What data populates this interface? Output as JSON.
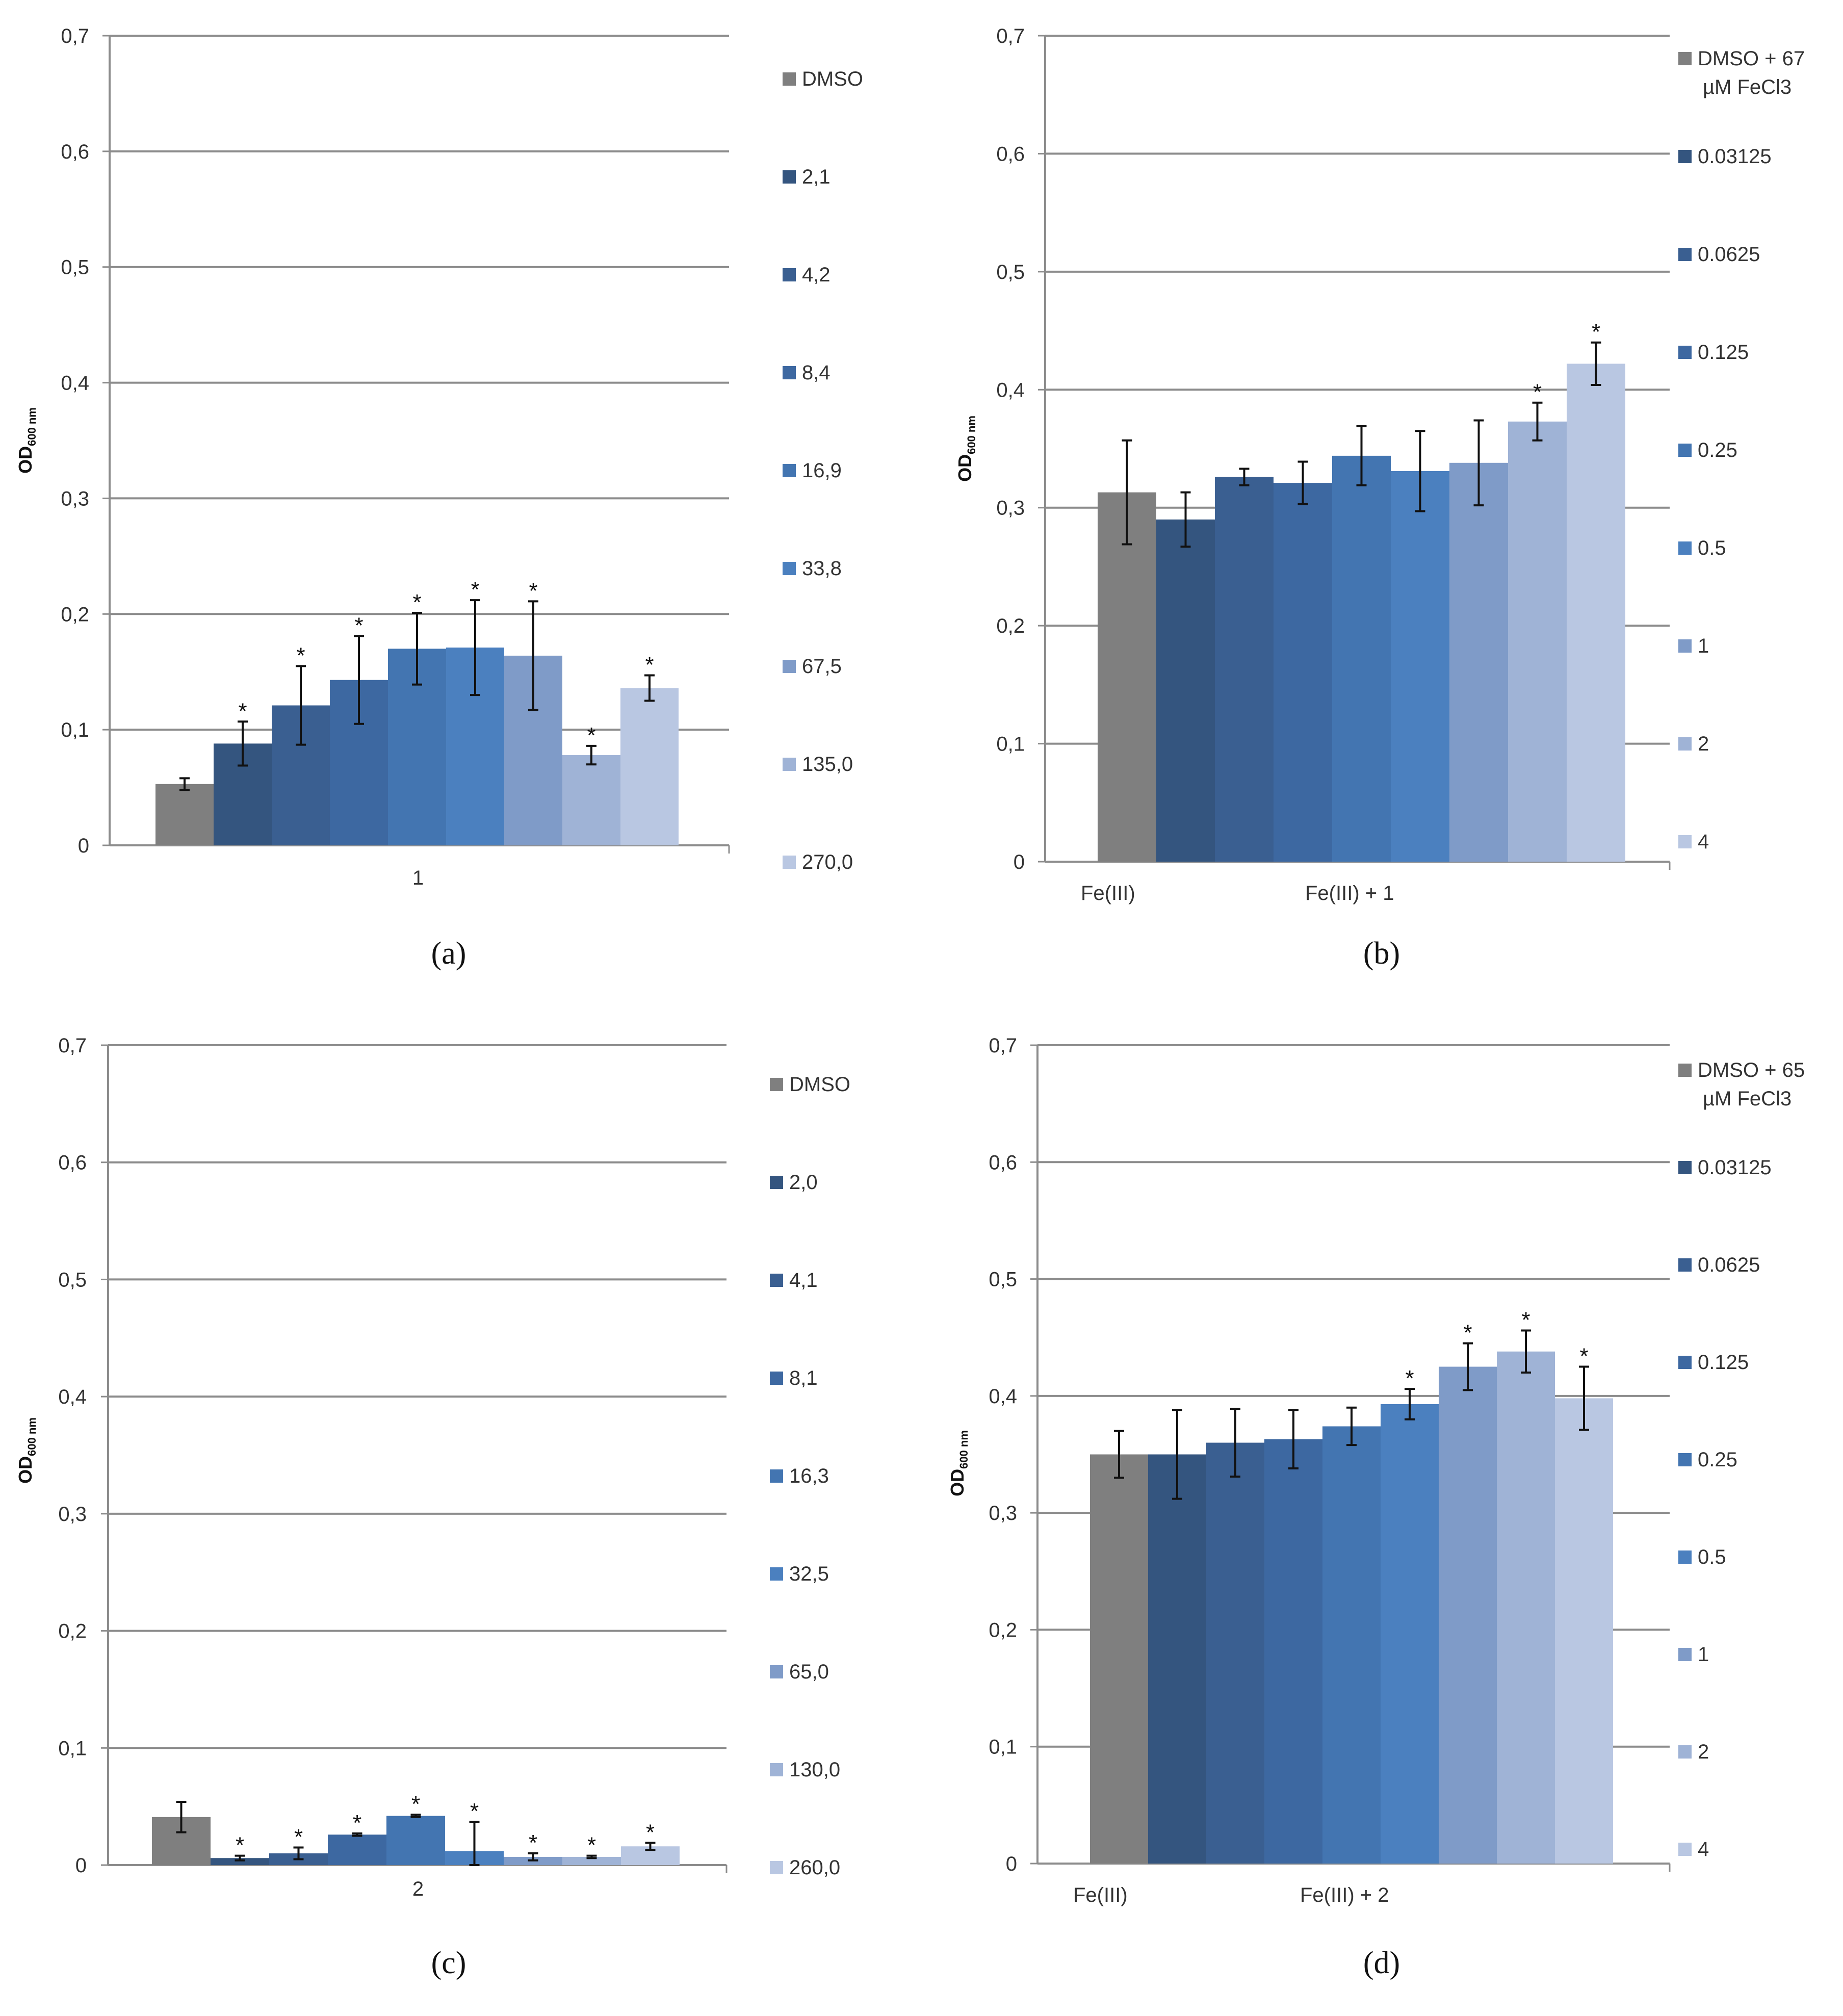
{
  "ylabel_main": "OD",
  "ylabel_sub": "600 nm",
  "yticks": [
    "0",
    "0,1",
    "0,2",
    "0,3",
    "0,4",
    "0,5",
    "0,6",
    "0,7"
  ],
  "ylim": [
    0,
    0.7
  ],
  "colors": [
    "#7f7f7f",
    "#34557f",
    "#3a5f91",
    "#3d68a1",
    "#4375b1",
    "#4b80bf",
    "#7f9bc8",
    "#9fb3d6",
    "#b9c7e2"
  ],
  "chart_data": [
    {
      "type": "bar",
      "caption": "(a)",
      "ylabel": "OD600 nm",
      "ylim": [
        0,
        0.7
      ],
      "categories": [
        "1"
      ],
      "series": [
        {
          "name": "DMSO",
          "value": 0.053,
          "err": 0.005,
          "sig": false
        },
        {
          "name": "2,1",
          "value": 0.088,
          "err": 0.019,
          "sig": true
        },
        {
          "name": "4,2",
          "value": 0.121,
          "err": 0.034,
          "sig": true
        },
        {
          "name": "8,4",
          "value": 0.143,
          "err": 0.038,
          "sig": true
        },
        {
          "name": "16,9",
          "value": 0.17,
          "err": 0.031,
          "sig": true
        },
        {
          "name": "33,8",
          "value": 0.171,
          "err": 0.041,
          "sig": true
        },
        {
          "name": "67,5",
          "value": 0.164,
          "err": 0.047,
          "sig": true
        },
        {
          "name": "135,0",
          "value": 0.078,
          "err": 0.008,
          "sig": true
        },
        {
          "name": "270,0",
          "value": 0.136,
          "err": 0.011,
          "sig": true
        }
      ]
    },
    {
      "type": "bar",
      "caption": "(b)",
      "ylabel": "OD600 nm",
      "ylim": [
        0,
        0.7
      ],
      "categories": [
        "Fe(III)",
        "Fe(III) + 1"
      ],
      "series": [
        {
          "name": "DMSO + 67 µM FeCl3",
          "value": 0.313,
          "err": 0.044,
          "sig": false
        },
        {
          "name": "0.03125",
          "value": 0.29,
          "err": 0.023,
          "sig": false
        },
        {
          "name": "0.0625",
          "value": 0.326,
          "err": 0.007,
          "sig": false
        },
        {
          "name": "0.125",
          "value": 0.321,
          "err": 0.018,
          "sig": false
        },
        {
          "name": "0.25",
          "value": 0.344,
          "err": 0.025,
          "sig": false
        },
        {
          "name": "0.5",
          "value": 0.331,
          "err": 0.034,
          "sig": false
        },
        {
          "name": "1",
          "value": 0.338,
          "err": 0.036,
          "sig": false
        },
        {
          "name": "2",
          "value": 0.373,
          "err": 0.016,
          "sig": true
        },
        {
          "name": "4",
          "value": 0.422,
          "err": 0.018,
          "sig": true
        }
      ]
    },
    {
      "type": "bar",
      "caption": "(c)",
      "ylabel": "OD600 nm",
      "ylim": [
        0,
        0.7
      ],
      "categories": [
        "2"
      ],
      "series": [
        {
          "name": "DMSO",
          "value": 0.041,
          "err": 0.013,
          "sig": false
        },
        {
          "name": "2,0",
          "value": 0.006,
          "err": 0.002,
          "sig": true
        },
        {
          "name": "4,1",
          "value": 0.01,
          "err": 0.005,
          "sig": true
        },
        {
          "name": "8,1",
          "value": 0.026,
          "err": 0.001,
          "sig": true
        },
        {
          "name": "16,3",
          "value": 0.042,
          "err": 0.001,
          "sig": true
        },
        {
          "name": "32,5",
          "value": 0.012,
          "err": 0.025,
          "sig": true
        },
        {
          "name": "65,0",
          "value": 0.007,
          "err": 0.003,
          "sig": true
        },
        {
          "name": "130,0",
          "value": 0.007,
          "err": 0.001,
          "sig": true
        },
        {
          "name": "260,0",
          "value": 0.016,
          "err": 0.003,
          "sig": true
        }
      ]
    },
    {
      "type": "bar",
      "caption": "(d)",
      "ylabel": "OD600 nm",
      "ylim": [
        0,
        0.7
      ],
      "categories": [
        "Fe(III)",
        "Fe(III) + 2"
      ],
      "series": [
        {
          "name": "DMSO + 65 µM FeCl3",
          "value": 0.35,
          "err": 0.02,
          "sig": false
        },
        {
          "name": "0.03125",
          "value": 0.35,
          "err": 0.038,
          "sig": false
        },
        {
          "name": "0.0625",
          "value": 0.36,
          "err": 0.029,
          "sig": false
        },
        {
          "name": "0.125",
          "value": 0.363,
          "err": 0.025,
          "sig": false
        },
        {
          "name": "0.25",
          "value": 0.374,
          "err": 0.016,
          "sig": false
        },
        {
          "name": "0.5",
          "value": 0.393,
          "err": 0.013,
          "sig": true
        },
        {
          "name": "1",
          "value": 0.425,
          "err": 0.02,
          "sig": true
        },
        {
          "name": "2",
          "value": 0.438,
          "err": 0.018,
          "sig": true
        },
        {
          "name": "4",
          "value": 0.398,
          "err": 0.027,
          "sig": true
        }
      ]
    }
  ]
}
